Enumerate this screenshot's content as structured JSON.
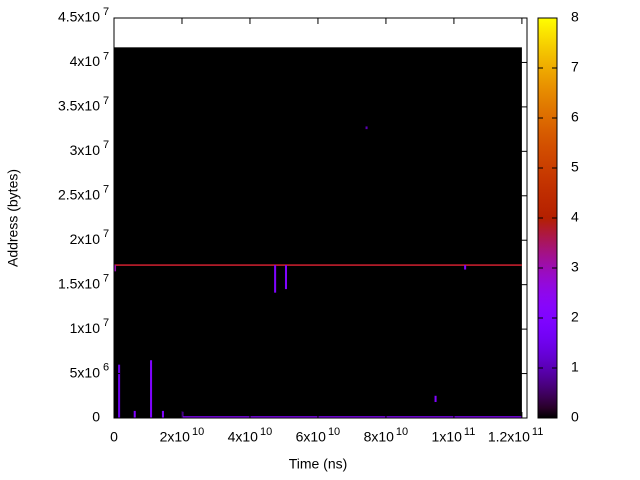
{
  "chart_data": {
    "type": "heatmap",
    "xlabel": "Time (ns)",
    "ylabel": "Address (bytes)",
    "xlim": [
      0,
      121500000000
    ],
    "ylim": [
      0,
      45000000
    ],
    "xticks": [
      0,
      {
        "value": 20000000000,
        "label": "2x10",
        "exponent": "10"
      },
      {
        "value": 40000000000,
        "label": "4x10",
        "exponent": "10"
      },
      {
        "value": 60000000000,
        "label": "6x10",
        "exponent": "10"
      },
      {
        "value": 80000000000,
        "label": "8x10",
        "exponent": "10"
      },
      {
        "value": 100000000000,
        "label": "1x10",
        "exponent": "11"
      },
      {
        "value": 120000000000,
        "label": "1.2x10",
        "exponent": "11"
      }
    ],
    "yticks": [
      0,
      {
        "value": 5000000,
        "label": "5x10",
        "exponent": "6"
      },
      {
        "value": 10000000,
        "label": "1x10",
        "exponent": "7"
      },
      {
        "value": 15000000,
        "label": "1.5x10",
        "exponent": "7"
      },
      {
        "value": 20000000,
        "label": "2x10",
        "exponent": "7"
      },
      {
        "value": 25000000,
        "label": "2.5x10",
        "exponent": "7"
      },
      {
        "value": 30000000,
        "label": "3x10",
        "exponent": "7"
      },
      {
        "value": 35000000,
        "label": "3.5x10",
        "exponent": "7"
      },
      {
        "value": 40000000,
        "label": "4x10",
        "exponent": "7"
      },
      {
        "value": 45000000,
        "label": "4.5x10",
        "exponent": "7"
      }
    ],
    "cblim": [
      0,
      8
    ],
    "cbticks": [
      0,
      1,
      2,
      3,
      4,
      5,
      6,
      7,
      8
    ],
    "palette": "rgbformulae 7,5,15",
    "cells": [
      {
        "x0": 0,
        "x1": 120000000000,
        "y0": 0,
        "y1": 41700000,
        "value": 0
      },
      {
        "x0": 0,
        "x1": 120000000000,
        "y0": 17100000,
        "y1": 17300000,
        "value": 3.8
      },
      {
        "x0": 20000000000,
        "x1": 120000000000,
        "y0": 0,
        "y1": 200000,
        "value": 2.2
      },
      {
        "x0": 0,
        "x1": 600000000,
        "y0": 16500000,
        "y1": 17200000,
        "value": 3
      },
      {
        "x0": 1200000000,
        "x1": 1800000000,
        "y0": 0,
        "y1": 6000000,
        "value": 1.5
      },
      {
        "x0": 5800000000,
        "x1": 6400000000,
        "y0": 0,
        "y1": 800000,
        "value": 2
      },
      {
        "x0": 10600000000,
        "x1": 11200000000,
        "y0": 0,
        "y1": 6500000,
        "value": 2
      },
      {
        "x0": 14100000000,
        "x1": 14700000000,
        "y0": 0,
        "y1": 800000,
        "value": 2
      },
      {
        "x0": 19800000000,
        "x1": 20400000000,
        "y0": 0,
        "y1": 700000,
        "value": 2
      },
      {
        "x0": 47100000000,
        "x1": 47700000000,
        "y0": 14100000,
        "y1": 17200000,
        "value": 2
      },
      {
        "x0": 50300000000,
        "x1": 50900000000,
        "y0": 14500000,
        "y1": 17200000,
        "value": 2
      },
      {
        "x0": 74000000000,
        "x1": 74600000000,
        "y0": 32500000,
        "y1": 32800000,
        "value": 1
      },
      {
        "x0": 94300000000,
        "x1": 94900000000,
        "y0": 1800000,
        "y1": 2500000,
        "value": 2
      },
      {
        "x0": 103000000000,
        "x1": 103600000000,
        "y0": 16700000,
        "y1": 17200000,
        "value": 2
      }
    ]
  }
}
